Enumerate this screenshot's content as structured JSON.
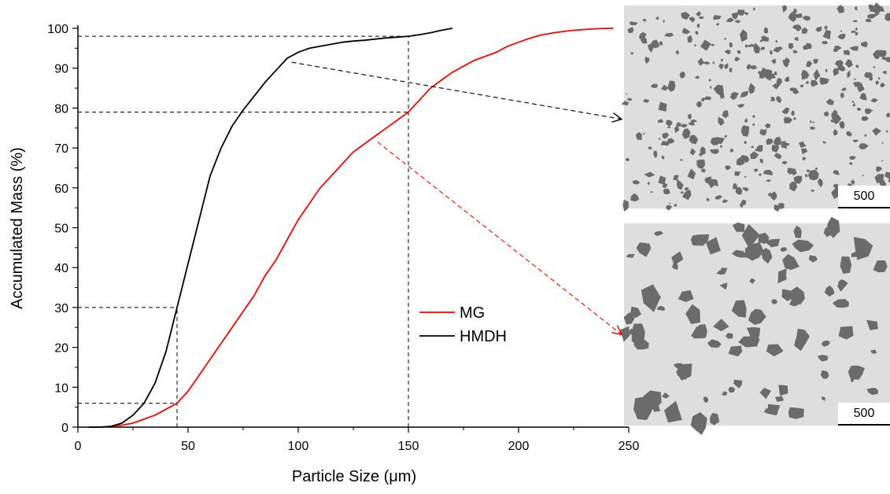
{
  "chart_data": {
    "type": "line",
    "xlabel": "Particle Size (μm)",
    "ylabel": "Accumulated Mass (%)",
    "xlim": [
      0,
      250
    ],
    "ylim": [
      0,
      100
    ],
    "x_ticks": [
      0,
      50,
      100,
      150,
      200,
      250
    ],
    "y_ticks": [
      0,
      10,
      20,
      30,
      40,
      50,
      60,
      70,
      80,
      90,
      100
    ],
    "grid": false,
    "legend_position": "center-right",
    "series": [
      {
        "name": "MG",
        "color": "#ff0000",
        "x": [
          5,
          10,
          15,
          20,
          25,
          30,
          35,
          40,
          45,
          50,
          55,
          60,
          65,
          70,
          75,
          80,
          85,
          90,
          95,
          100,
          105,
          110,
          115,
          120,
          125,
          130,
          135,
          140,
          145,
          150,
          155,
          160,
          165,
          170,
          175,
          180,
          185,
          190,
          195,
          200,
          205,
          210,
          215,
          220,
          225,
          230,
          235,
          243
        ],
        "y": [
          0,
          0,
          0.2,
          0.5,
          1,
          2,
          3,
          4.5,
          6,
          9,
          13,
          17,
          21,
          25,
          29,
          33,
          38,
          42,
          47,
          52,
          56,
          60,
          63,
          66,
          69,
          71,
          73,
          75,
          77,
          79,
          82,
          85,
          87,
          89,
          90.5,
          92,
          93,
          94,
          95.5,
          96.5,
          97.5,
          98.3,
          98.8,
          99.2,
          99.5,
          99.7,
          99.9,
          100
        ]
      },
      {
        "name": "HMDH",
        "color": "#000000",
        "x": [
          5,
          10,
          15,
          20,
          25,
          30,
          35,
          40,
          45,
          50,
          55,
          60,
          65,
          70,
          75,
          80,
          85,
          90,
          95,
          100,
          105,
          110,
          115,
          120,
          125,
          130,
          135,
          140,
          145,
          150,
          155,
          160,
          165,
          170
        ],
        "y": [
          0,
          0,
          0.2,
          1,
          3,
          6,
          11,
          19,
          30,
          41,
          52,
          63,
          70,
          75.5,
          79.5,
          83,
          86.5,
          89.5,
          92.5,
          94,
          95,
          95.5,
          96,
          96.5,
          96.8,
          97,
          97.3,
          97.6,
          97.8,
          98,
          98.4,
          98.9,
          99.5,
          100
        ]
      }
    ],
    "reference_lines": [
      {
        "axis": "y",
        "value": 98,
        "to_x": 150
      },
      {
        "axis": "y",
        "value": 79,
        "to_x": 150
      },
      {
        "axis": "y",
        "value": 30,
        "to_x": 45
      },
      {
        "axis": "y",
        "value": 6,
        "to_x": 45
      },
      {
        "axis": "x",
        "value": 45,
        "to_y": 30
      },
      {
        "axis": "x",
        "value": 150,
        "to_y": 98
      }
    ],
    "annotation_arrows": [
      {
        "from_series": "HMDH",
        "from_x": 97,
        "from_y": 91.5,
        "to": "micro-hmdh",
        "color": "#000000"
      },
      {
        "from_series": "MG",
        "from_x": 136,
        "from_y": 71.5,
        "to": "micro-mg",
        "color": "#ff0000"
      }
    ]
  },
  "micrographs": [
    {
      "id": "micro-hmdh",
      "scale_label": "500"
    },
    {
      "id": "micro-mg",
      "scale_label": "500"
    }
  ]
}
